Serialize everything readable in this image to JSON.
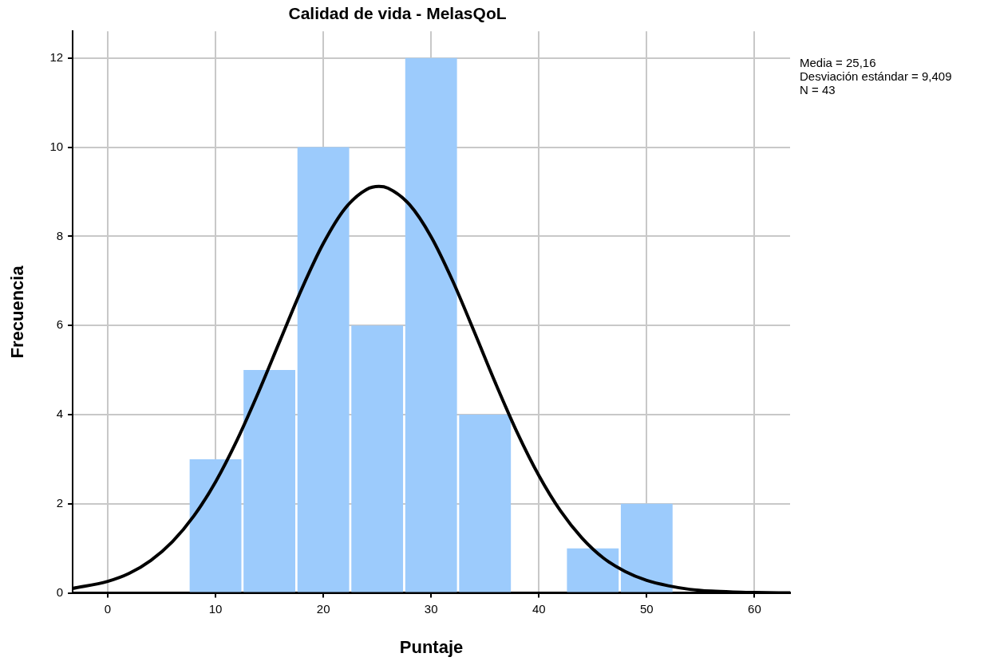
{
  "chart_data": {
    "type": "histogram",
    "title": "Calidad de vida - MelasQoL",
    "xlabel": "Puntaje",
    "ylabel": "Frecuencia",
    "bins": [
      7.5,
      12.5,
      17.5,
      22.5,
      27.5,
      32.5,
      37.5,
      42.5,
      47.5,
      52.5
    ],
    "values": [
      3,
      5,
      10,
      6,
      12,
      4,
      0,
      1,
      2
    ],
    "color": "#9ccbfc",
    "series": [
      {
        "type": "line",
        "color": "#000000",
        "x": [
          -3.25,
          0,
          2,
          4,
          6,
          8,
          10,
          12,
          14,
          16,
          18,
          20,
          22,
          24,
          25.16,
          26,
          28,
          30,
          32,
          34,
          36,
          38,
          40,
          42,
          44,
          46,
          48,
          50,
          52,
          54,
          56,
          58,
          60,
          63.3
        ],
        "values": [
          0.1,
          0.26,
          0.44,
          0.73,
          1.15,
          1.73,
          2.49,
          3.43,
          4.51,
          5.67,
          6.82,
          7.84,
          8.62,
          9.05,
          9.12,
          9.08,
          8.71,
          7.99,
          7.0,
          5.86,
          4.69,
          3.59,
          2.63,
          1.84,
          1.23,
          0.78,
          0.48,
          0.28,
          0.16,
          0.08,
          0.04,
          0.02,
          0.01,
          0.0
        ]
      }
    ],
    "xlim": [
      -3.25,
      63.3
    ],
    "xticks": [
      0,
      10,
      20,
      30,
      40,
      50,
      60
    ],
    "ylim": [
      0,
      12.6
    ],
    "yticks": [
      0,
      2,
      4,
      6,
      8,
      10,
      12
    ],
    "grid": true,
    "legend": false,
    "annotations": [
      "Media = 25,16",
      "Desviación estándar = 9,409",
      "N = 43"
    ]
  }
}
